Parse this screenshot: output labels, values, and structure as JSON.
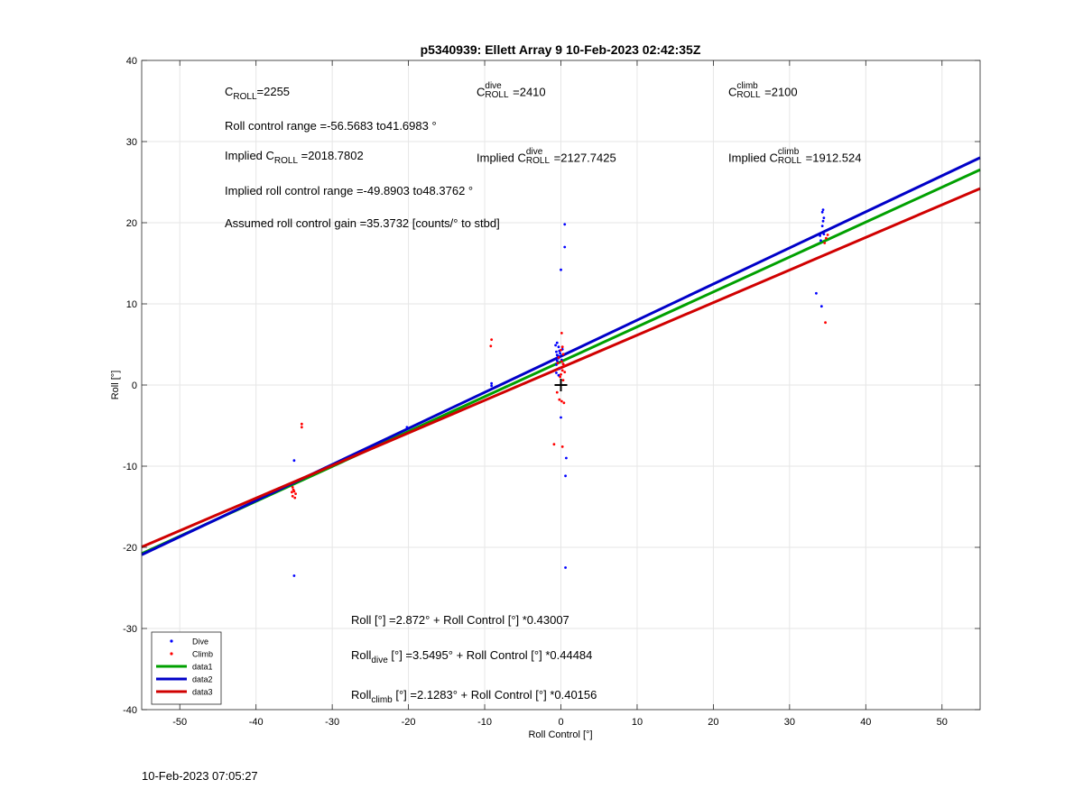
{
  "chart_data": {
    "type": "scatter",
    "title": "p5340939: Ellett Array 9 10-Feb-2023 02:42:35Z",
    "xlabel": "Roll Control [°]",
    "ylabel": "Roll [°]",
    "xlim": [
      -55,
      55
    ],
    "ylim": [
      -40,
      40
    ],
    "xticks": [
      -50,
      -40,
      -30,
      -20,
      -10,
      0,
      10,
      20,
      30,
      40,
      50
    ],
    "yticks": [
      -40,
      -30,
      -20,
      -10,
      0,
      10,
      20,
      30,
      40
    ],
    "xtick_labels": [
      "-50",
      "-40",
      "-30",
      "-20",
      "-10",
      "0",
      "10",
      "20",
      "30",
      "40",
      "50"
    ],
    "ytick_labels": [
      "-40",
      "-30",
      "-20",
      "-10",
      "0",
      "10",
      "20",
      "30",
      "40"
    ],
    "grid": true,
    "legend_position": "bottom-left",
    "series": [
      {
        "name": "Dive",
        "kind": "points",
        "color": "#0000ff",
        "points": [
          [
            -35,
            -9.3
          ],
          [
            -35,
            -23.5
          ],
          [
            -20.2,
            -5.2
          ],
          [
            -9.1,
            -0.1
          ],
          [
            -9.1,
            0.2
          ],
          [
            0,
            14.2
          ],
          [
            0.5,
            17
          ],
          [
            0.5,
            19.8
          ],
          [
            0,
            -4
          ],
          [
            0.7,
            -9
          ],
          [
            0.6,
            -11.2
          ],
          [
            0.6,
            -22.5
          ],
          [
            -0.6,
            2.5
          ],
          [
            -0.5,
            3.0
          ],
          [
            -0.4,
            3.6
          ],
          [
            -0.6,
            4.1
          ],
          [
            -0.3,
            4.7
          ],
          [
            -0.5,
            5.2
          ],
          [
            -0.2,
            2.0
          ],
          [
            -0.6,
            1.5
          ],
          [
            -0.3,
            3.3
          ],
          [
            -0.1,
            3.9
          ],
          [
            0.2,
            4.4
          ],
          [
            -0.7,
            4.9
          ],
          [
            -0.4,
            2.8
          ],
          [
            -0.2,
            4.2
          ],
          [
            0.1,
            3.1
          ],
          [
            -0.5,
            3.7
          ],
          [
            0.3,
            2.6
          ],
          [
            -0.3,
            1.2
          ],
          [
            33.5,
            11.3
          ],
          [
            34.2,
            9.7
          ],
          [
            34.1,
            17.8
          ],
          [
            34.5,
            18.6
          ],
          [
            34.3,
            19.6
          ],
          [
            34.4,
            20.2
          ],
          [
            34.5,
            20.6
          ],
          [
            34.3,
            21.3
          ],
          [
            34.4,
            21.6
          ],
          [
            34.0,
            18.4
          ]
        ]
      },
      {
        "name": "Climb",
        "kind": "points",
        "color": "#ff0000",
        "points": [
          [
            -34,
            -4.8
          ],
          [
            -34,
            -5.2
          ],
          [
            -35.2,
            -12.6
          ],
          [
            -35.1,
            -12.9
          ],
          [
            -35.0,
            -13.1
          ],
          [
            -34.8,
            -13.4
          ],
          [
            -35.2,
            -13.7
          ],
          [
            -34.9,
            -13.9
          ],
          [
            -35.3,
            -13.2
          ],
          [
            -9.2,
            4.8
          ],
          [
            -9.1,
            5.6
          ],
          [
            0.1,
            6.4
          ],
          [
            -0.9,
            -7.3
          ],
          [
            0.2,
            -7.6
          ],
          [
            -0.2,
            -1.8
          ],
          [
            0.1,
            -2.0
          ],
          [
            0.4,
            -2.2
          ],
          [
            -0.5,
            -0.9
          ],
          [
            0.3,
            0.6
          ],
          [
            0.0,
            1.3
          ],
          [
            0.2,
            1.8
          ],
          [
            -0.2,
            2.1
          ],
          [
            0.4,
            2.4
          ],
          [
            0.1,
            2.9
          ],
          [
            -0.3,
            3.4
          ],
          [
            0.3,
            3.8
          ],
          [
            0.0,
            4.3
          ],
          [
            0.2,
            4.7
          ],
          [
            -0.1,
            1.0
          ],
          [
            0.5,
            1.6
          ],
          [
            0.3,
            2.6
          ],
          [
            -0.4,
            2.7
          ],
          [
            34.7,
            7.7
          ],
          [
            34.6,
            17.5
          ],
          [
            34.8,
            18.1
          ],
          [
            35.0,
            18.5
          ]
        ]
      },
      {
        "name": "data1",
        "kind": "line",
        "color": "#00a000",
        "intercept": 2.872,
        "slope": 0.43007
      },
      {
        "name": "data2",
        "kind": "line",
        "color": "#0000c8",
        "intercept": 3.5495,
        "slope": 0.44484
      },
      {
        "name": "data3",
        "kind": "line",
        "color": "#d00000",
        "intercept": 2.1283,
        "slope": 0.40156
      }
    ],
    "marker": {
      "x": 0,
      "y": 0,
      "symbol": "+"
    },
    "legend_labels": [
      "Dive",
      "Climb",
      "data1",
      "data2",
      "data3"
    ]
  },
  "annotations": {
    "c_roll": {
      "label_main": "C",
      "label_sub": "ROLL",
      "value": "=2255"
    },
    "c_roll_dive": {
      "label_main": "C",
      "label_sup": "dive",
      "label_sub": "ROLL",
      "value": " =2410"
    },
    "c_roll_climb": {
      "label_main": "C",
      "label_sup": "climb",
      "label_sub": "ROLL",
      "value": " =2100"
    },
    "roll_range": "Roll control range =-56.5683 to41.6983 °",
    "implied_c_roll": {
      "prefix": "Implied C",
      "label_sub": "ROLL",
      "value": " =2018.7802"
    },
    "implied_c_roll_dive": {
      "prefix": "Implied C",
      "label_sup": "dive",
      "label_sub": "ROLL",
      "value": " =2127.7425"
    },
    "implied_c_roll_climb": {
      "prefix": "Implied C",
      "label_sup": "climb",
      "label_sub": "ROLL",
      "value": " =1912.524"
    },
    "implied_range": "Implied roll control range =-49.8903 to48.3762 °",
    "gain": "Assumed roll control gain =35.3732 [counts/° to stbd]",
    "fit_all": "Roll [°] =2.872° + Roll Control [°] *0.43007",
    "fit_dive": {
      "prefix": "Roll",
      "sub": "dive",
      "rest": " [°] =3.5495° + Roll Control [°] *0.44484"
    },
    "fit_climb": {
      "prefix": "Roll",
      "sub": "climb",
      "rest": " [°] =2.1283° + Roll Control [°] *0.40156"
    }
  },
  "footer": {
    "timestamp": "10-Feb-2023 07:05:27"
  }
}
